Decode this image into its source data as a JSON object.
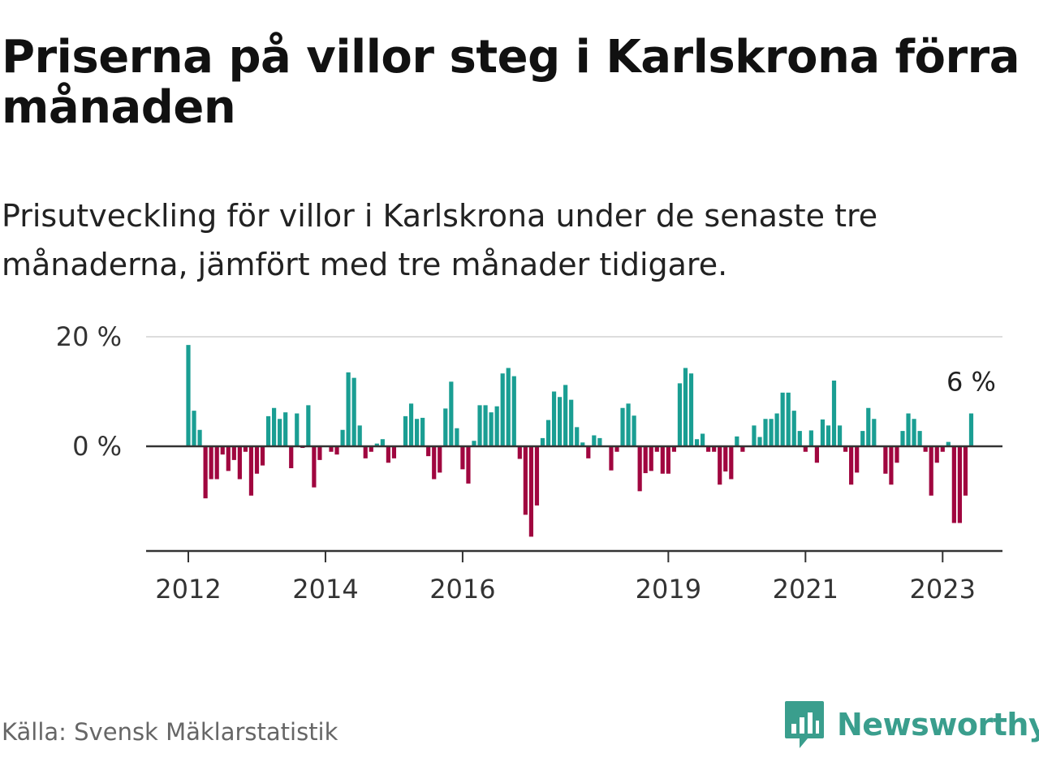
{
  "title": "Priserna på villor steg i Karlskrona förra månaden",
  "subtitle": "Prisutveckling för villor i Karlskrona under de senaste tre månaderna, jämfört med tre månader tidigare.",
  "source": "Källa: Svensk Mäklarstatistik",
  "brand": {
    "name": "Newsworthy",
    "icon": "newsworthy-logo-icon",
    "color": "#3a9e8d"
  },
  "colors": {
    "positive": "#1a9e93",
    "negative": "#a0063f",
    "axis": "#333333",
    "grid": "#dddddd"
  },
  "chart_data": {
    "type": "bar",
    "title": "Priserna på villor steg i Karlskrona förra månaden",
    "subtitle": "Prisutveckling för villor i Karlskrona under de senaste tre månaderna, jämfört med tre månader tidigare.",
    "xlabel": "",
    "ylabel": "",
    "start_month": "2012-01",
    "ylim": [
      -19,
      20
    ],
    "yticks": [
      {
        "value": 0,
        "label": "0 %"
      },
      {
        "value": 20,
        "label": "20 %"
      }
    ],
    "xticks": [
      {
        "month": "2012-01",
        "label": "2012"
      },
      {
        "month": "2014-01",
        "label": "2014"
      },
      {
        "month": "2016-01",
        "label": "2016"
      },
      {
        "month": "2019-01",
        "label": "2019"
      },
      {
        "month": "2021-01",
        "label": "2021"
      },
      {
        "month": "2023-01",
        "label": "2023"
      }
    ],
    "grid": true,
    "annotation": {
      "text": "6 %",
      "at": "last"
    },
    "values": [
      18.5,
      6.5,
      3,
      -9.5,
      -6,
      -6,
      -1.5,
      -4.5,
      -2.5,
      -6,
      -1,
      -9,
      -5,
      -3.5,
      5.5,
      7,
      5,
      6.2,
      -4,
      6,
      -0.3,
      7.5,
      -7.5,
      -2.5,
      0,
      -1,
      -1.5,
      3,
      13.5,
      12.5,
      3.8,
      -2.2,
      -1,
      0.5,
      1.3,
      -3,
      -2.2,
      0,
      5.5,
      7.8,
      5,
      5.2,
      -1.8,
      -6,
      -4.8,
      6.9,
      11.8,
      3.3,
      -4.2,
      -6.8,
      1,
      7.5,
      7.5,
      6.2,
      7.3,
      13.3,
      14.3,
      12.8,
      -2.3,
      -12.5,
      -16.5,
      -10.8,
      1.5,
      4.8,
      10,
      9,
      11.2,
      8.5,
      3.5,
      0.7,
      -2.2,
      2,
      1.5,
      0,
      -4.4,
      -1,
      7,
      7.8,
      5.6,
      -8.2,
      -4.9,
      -4.5,
      -1,
      -5,
      -5,
      -1,
      11.5,
      14.3,
      13.3,
      1.3,
      2.3,
      -1,
      -1,
      -7,
      -4.6,
      -6,
      1.8,
      -1,
      0,
      3.8,
      1.7,
      5,
      5,
      6,
      9.8,
      9.8,
      6.5,
      2.8,
      -1,
      2.9,
      -3,
      4.9,
      3.8,
      12,
      3.8,
      -1,
      -7,
      -4.8,
      2.8,
      7,
      5,
      0,
      -5,
      -7,
      -3,
      2.8,
      6,
      5,
      2.8,
      -1,
      -9,
      -3,
      -1,
      0.8,
      -14,
      -14,
      -9,
      6
    ]
  }
}
